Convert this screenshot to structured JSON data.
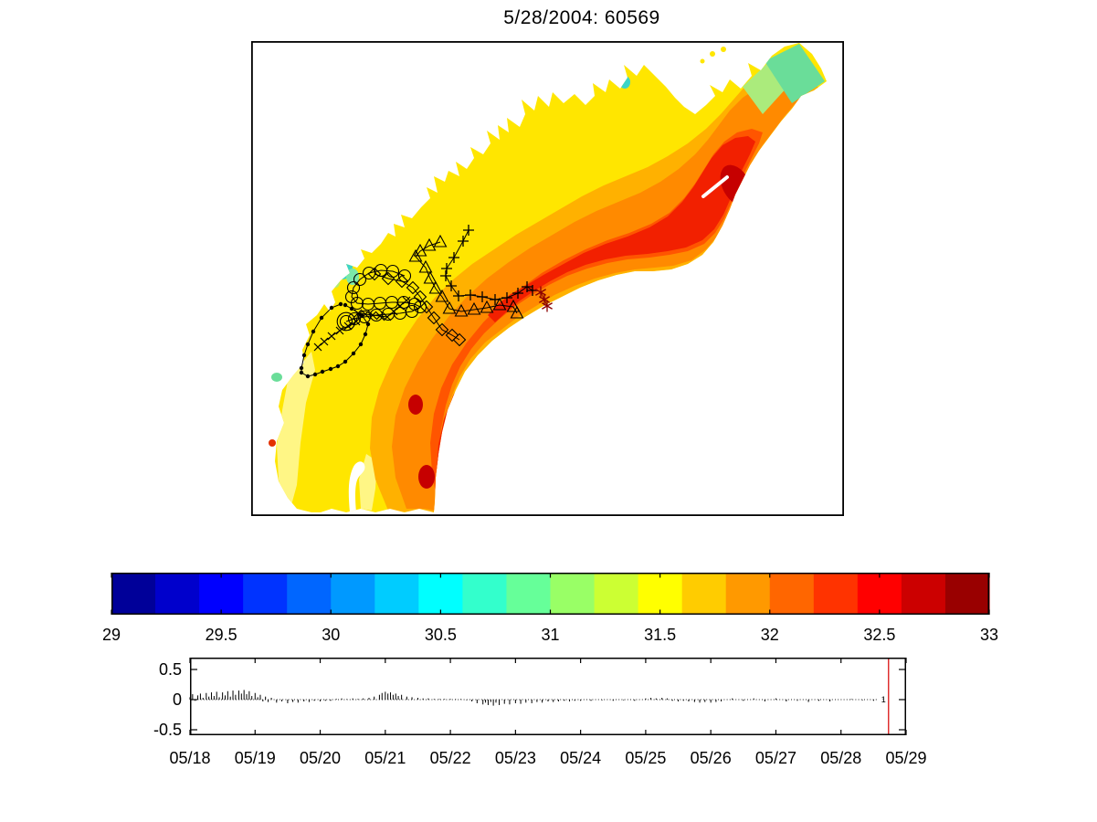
{
  "title": "5/28/2004: 60569",
  "palette": {
    "band_yellow": "#FFE600",
    "band_pale_yellow": "#FFF685",
    "band_orange": "#FFB100",
    "band_deep_orange": "#FF8A00",
    "band_orange_red": "#FF5500",
    "band_red": "#F22000",
    "band_dark_red": "#C60000",
    "accent_green": "#6ADD99",
    "accent_yellow_green": "#ABEB7C",
    "accent_cyan": "#3BD4C8",
    "accent_teal": "#7BE8AA",
    "spot_red": "#E33000",
    "shore_white": "#FFFFFF",
    "track_black": "#000000",
    "asterisk_dark_red": "#8B0000",
    "event_red": "#DD2222"
  },
  "chart_data": [
    {
      "name": "surface-field-map",
      "type": "heatmap",
      "title": "5/28/2004: 60569",
      "value_range": [
        29,
        33
      ],
      "colormap": "jet",
      "colormap_levels": 20,
      "legend_position": "horizontal colorbar below",
      "grid": false,
      "trajectories": [
        {
          "name": "track-dots",
          "marker": "dot",
          "color": "#000000",
          "points": [
            [
              98,
              288
            ],
            [
              88,
              292
            ],
            [
              77,
              303
            ],
            [
              68,
              318
            ],
            [
              62,
              332
            ],
            [
              58,
              344
            ],
            [
              55,
              358
            ],
            [
              55,
              363
            ],
            [
              62,
              367
            ],
            [
              70,
              365
            ],
            [
              78,
              362
            ],
            [
              87,
              359
            ],
            [
              95,
              356
            ],
            [
              103,
              351
            ],
            [
              112,
              342
            ],
            [
              120,
              332
            ],
            [
              125,
              321
            ],
            [
              128,
              310
            ],
            [
              121,
              300
            ],
            [
              110,
              293
            ],
            [
              103,
              289
            ]
          ]
        },
        {
          "name": "track-x",
          "marker": "x",
          "color": "#000000",
          "points": [
            [
              73,
              335
            ],
            [
              80,
              329
            ],
            [
              88,
              323
            ],
            [
              97,
              317
            ],
            [
              106,
              312
            ],
            [
              115,
              307
            ],
            [
              117,
              298
            ],
            [
              125,
              299
            ],
            [
              133,
              300
            ],
            [
              141,
              301
            ],
            [
              149,
              302
            ],
            [
              156,
              296
            ],
            [
              163,
              290
            ],
            [
              170,
              284
            ]
          ]
        },
        {
          "name": "track-circles",
          "marker": "circle",
          "end_marker": "double-circle",
          "color": "#000000",
          "points": [
            [
              168,
              257
            ],
            [
              155,
              252
            ],
            [
              142,
              251
            ],
            [
              129,
              254
            ],
            [
              119,
              261
            ],
            [
              112,
              270
            ],
            [
              110,
              280
            ],
            [
              116,
              287
            ],
            [
              128,
              288
            ],
            [
              141,
              287
            ],
            [
              154,
              286
            ],
            [
              167,
              286
            ],
            [
              179,
              288
            ],
            [
              185,
              291
            ],
            [
              176,
              296
            ],
            [
              163,
              298
            ],
            [
              150,
              299
            ],
            [
              137,
              300
            ],
            [
              124,
              302
            ],
            [
              113,
              304
            ],
            [
              104,
              307
            ]
          ]
        },
        {
          "name": "track-plus",
          "marker": "plus",
          "color": "#000000",
          "points": [
            [
              238,
              207
            ],
            [
              232,
              219
            ],
            [
              222,
              237
            ],
            [
              214,
              249
            ],
            [
              213,
              257
            ],
            [
              219,
              268
            ],
            [
              227,
              279
            ],
            [
              240,
              278
            ],
            [
              253,
              280
            ],
            [
              267,
              283
            ],
            [
              280,
              281
            ],
            [
              292,
              276
            ],
            [
              302,
              269
            ],
            [
              308,
              273
            ]
          ]
        },
        {
          "name": "track-triangles",
          "marker": "triangle",
          "color": "#000000",
          "points": [
            [
              207,
              220
            ],
            [
              195,
              224
            ],
            [
              185,
              230
            ],
            [
              180,
              236
            ],
            [
              191,
              248
            ],
            [
              196,
              260
            ],
            [
              202,
              271
            ],
            [
              209,
              280
            ],
            [
              217,
              293
            ],
            [
              230,
              296
            ],
            [
              244,
              294
            ],
            [
              258,
              292
            ],
            [
              272,
              289
            ],
            [
              287,
              291
            ],
            [
              291,
              298
            ]
          ]
        },
        {
          "name": "track-diamonds",
          "marker": "diamond",
          "color": "#000000",
          "points": [
            [
              135,
              255
            ],
            [
              150,
              260
            ],
            [
              165,
              263
            ],
            [
              177,
              270
            ],
            [
              185,
              280
            ],
            [
              192,
              291
            ],
            [
              200,
              303
            ],
            [
              209,
              316
            ],
            [
              220,
              322
            ],
            [
              228,
              327
            ]
          ]
        },
        {
          "name": "track-end-asterisks",
          "marker": "asterisk",
          "color": "#8B0000",
          "points": [
            [
              317,
              275
            ],
            [
              321,
              283
            ],
            [
              324,
              290
            ]
          ]
        }
      ]
    },
    {
      "name": "colorbar",
      "type": "colorbar",
      "orientation": "horizontal",
      "range": [
        29,
        33
      ],
      "tick_values": [
        29,
        29.5,
        30,
        30.5,
        31,
        31.5,
        32,
        32.5,
        33
      ],
      "tick_labels": [
        "29",
        "29.5",
        "30",
        "30.5",
        "31",
        "31.5",
        "32",
        "32.5",
        "33"
      ],
      "colors": [
        "#000099",
        "#0000CC",
        "#0000FF",
        "#0033FF",
        "#0066FF",
        "#0099FF",
        "#00CCFF",
        "#00FFFF",
        "#33FFCC",
        "#66FF99",
        "#99FF66",
        "#CCFF33",
        "#FFFF00",
        "#FFCC00",
        "#FF9900",
        "#FF6600",
        "#FF3300",
        "#FF0000",
        "#CC0000",
        "#990000"
      ]
    },
    {
      "name": "residual-series",
      "type": "line",
      "ylim": [
        -0.5,
        0.5
      ],
      "ytick_values": [
        0.5,
        0,
        -0.5
      ],
      "ytick_labels": [
        "0.5",
        "0",
        "-0.5"
      ],
      "xtick_labels": [
        "05/18",
        "05/19",
        "05/20",
        "05/21",
        "05/22",
        "05/23",
        "05/24",
        "05/25",
        "05/26",
        "05/27",
        "05/28",
        "05/29"
      ],
      "x_days_span": 11,
      "event_line": {
        "day": 10.73,
        "color": "#DD2222",
        "label": "1"
      },
      "points": [
        [
          0,
          0.04
        ],
        [
          0.04,
          0.09
        ],
        [
          0.08,
          -0.02
        ],
        [
          0.12,
          0.07
        ],
        [
          0.16,
          0.1
        ],
        [
          0.2,
          0.03
        ],
        [
          0.25,
          0.11
        ],
        [
          0.29,
          0.05
        ],
        [
          0.33,
          0.12
        ],
        [
          0.37,
          0.06
        ],
        [
          0.41,
          0.13
        ],
        [
          0.45,
          0.04
        ],
        [
          0.5,
          0.12
        ],
        [
          0.54,
          0.07
        ],
        [
          0.58,
          0.14
        ],
        [
          0.62,
          0.05
        ],
        [
          0.66,
          0.15
        ],
        [
          0.7,
          0.08
        ],
        [
          0.75,
          0.15
        ],
        [
          0.79,
          0.1
        ],
        [
          0.83,
          0.16
        ],
        [
          0.87,
          0.09
        ],
        [
          0.91,
          0.14
        ],
        [
          0.95,
          0.06
        ],
        [
          1,
          0.11
        ],
        [
          1.04,
          0.04
        ],
        [
          1.08,
          0.08
        ],
        [
          1.12,
          -0.03
        ],
        [
          1.16,
          0.05
        ],
        [
          1.2,
          -0.04
        ],
        [
          1.25,
          0.03
        ],
        [
          1.33,
          -0.05
        ],
        [
          1.41,
          -0.03
        ],
        [
          1.5,
          -0.06
        ],
        [
          1.58,
          -0.04
        ],
        [
          1.66,
          -0.05
        ],
        [
          1.75,
          -0.03
        ],
        [
          1.83,
          -0.04
        ],
        [
          1.91,
          -0.02
        ],
        [
          2,
          -0.03
        ],
        [
          2.08,
          -0.02
        ],
        [
          2.16,
          -0.02
        ],
        [
          2.25,
          0.01
        ],
        [
          2.33,
          0.02
        ],
        [
          2.41,
          0.01
        ],
        [
          2.5,
          0.02
        ],
        [
          2.58,
          0.01
        ],
        [
          2.66,
          0.02
        ],
        [
          2.75,
          0.03
        ],
        [
          2.83,
          0.05
        ],
        [
          2.91,
          0.08
        ],
        [
          2.95,
          0.11
        ],
        [
          3,
          0.13
        ],
        [
          3.04,
          0.1
        ],
        [
          3.08,
          0.12
        ],
        [
          3.12,
          0.08
        ],
        [
          3.16,
          0.1
        ],
        [
          3.2,
          0.06
        ],
        [
          3.25,
          0.08
        ],
        [
          3.33,
          0.05
        ],
        [
          3.41,
          0.04
        ],
        [
          3.5,
          0.03
        ],
        [
          3.58,
          0.02
        ],
        [
          3.66,
          0.02
        ],
        [
          3.75,
          0.01
        ],
        [
          3.83,
          0.01
        ],
        [
          3.91,
          0.01
        ],
        [
          4,
          0.01
        ],
        [
          4.08,
          0.01
        ],
        [
          4.16,
          0.01
        ],
        [
          4.25,
          -0.01
        ],
        [
          4.33,
          -0.03
        ],
        [
          4.41,
          -0.06
        ],
        [
          4.5,
          -0.08
        ],
        [
          4.54,
          -0.05
        ],
        [
          4.58,
          -0.09
        ],
        [
          4.62,
          -0.04
        ],
        [
          4.66,
          -0.1
        ],
        [
          4.7,
          -0.05
        ],
        [
          4.75,
          -0.09
        ],
        [
          4.83,
          -0.07
        ],
        [
          4.91,
          -0.08
        ],
        [
          5,
          -0.06
        ],
        [
          5.08,
          -0.07
        ],
        [
          5.16,
          -0.05
        ],
        [
          5.25,
          -0.06
        ],
        [
          5.33,
          -0.04
        ],
        [
          5.41,
          -0.05
        ],
        [
          5.5,
          -0.03
        ],
        [
          5.58,
          -0.04
        ],
        [
          5.66,
          -0.03
        ],
        [
          5.75,
          -0.02
        ],
        [
          5.83,
          -0.03
        ],
        [
          5.91,
          -0.02
        ],
        [
          6,
          -0.02
        ],
        [
          6.16,
          -0.02
        ],
        [
          6.33,
          -0.01
        ],
        [
          6.5,
          -0.02
        ],
        [
          6.66,
          -0.01
        ],
        [
          6.83,
          -0.02
        ],
        [
          7,
          0.02
        ],
        [
          7.08,
          0.03
        ],
        [
          7.16,
          0.02
        ],
        [
          7.25,
          0.03
        ],
        [
          7.33,
          0.02
        ],
        [
          7.41,
          -0.02
        ],
        [
          7.5,
          -0.03
        ],
        [
          7.58,
          -0.02
        ],
        [
          7.66,
          -0.03
        ],
        [
          7.75,
          -0.04
        ],
        [
          7.83,
          -0.05
        ],
        [
          7.91,
          -0.04
        ],
        [
          8,
          -0.05
        ],
        [
          8.08,
          -0.04
        ],
        [
          8.16,
          -0.03
        ],
        [
          8.33,
          0.02
        ],
        [
          8.5,
          -0.02
        ],
        [
          8.66,
          0.02
        ],
        [
          8.83,
          -0.03
        ],
        [
          9,
          0.02
        ],
        [
          9.16,
          -0.03
        ],
        [
          9.33,
          -0.02
        ],
        [
          9.5,
          -0.04
        ],
        [
          9.66,
          -0.02
        ],
        [
          9.83,
          -0.03
        ],
        [
          10.16,
          0.01
        ],
        [
          10.33,
          -0.01
        ],
        [
          10.5,
          -0.02
        ],
        [
          10.65,
          0.02
        ]
      ]
    }
  ]
}
